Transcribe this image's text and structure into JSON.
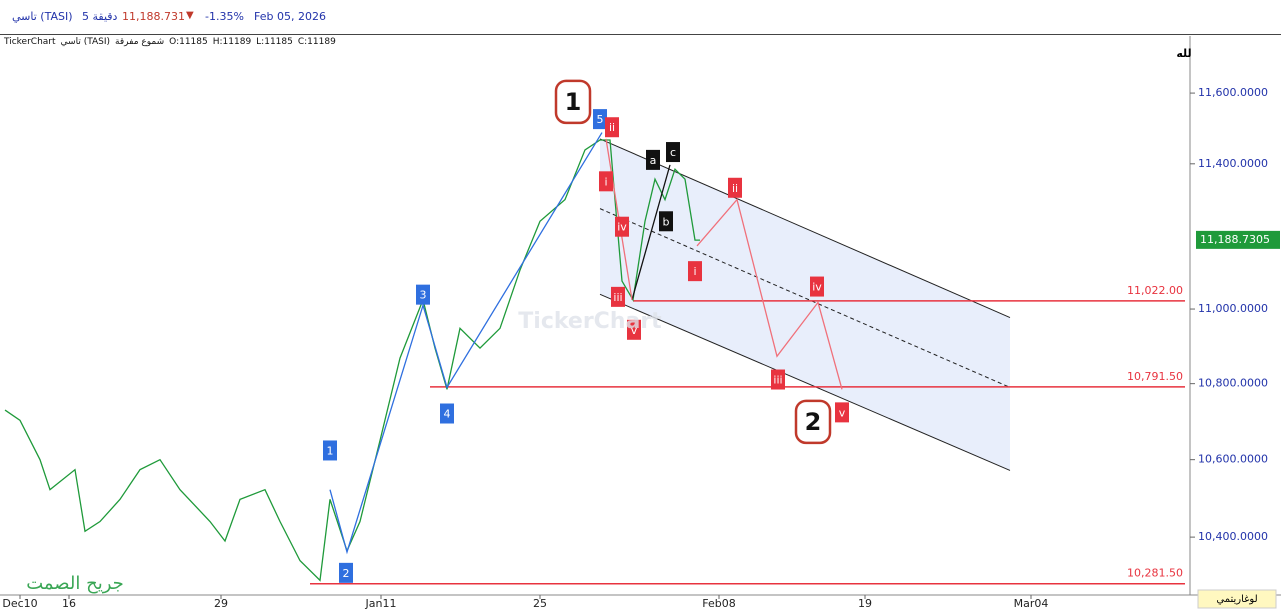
{
  "header": {
    "symbol": "تاسي (TASI)",
    "interval": "5 دقيقة",
    "price": "11,188.731",
    "change": "-1.35%",
    "date": "Feb 05, 2026"
  },
  "info": {
    "source": "TickerChart",
    "name": "تاسي (TASI)",
    "style": "شموع مفرقة",
    "open": "O:11185",
    "high": "H:11189",
    "low": "L:11185",
    "close": "C:11189"
  },
  "icon": "لله",
  "watermark": "TickerChart",
  "signature": "جريح الصمت",
  "scale_button": "لوغاريتمي",
  "chart_data": {
    "type": "line",
    "log_scale": true,
    "xlim": [
      0,
      119
    ],
    "ylim": [
      10253,
      11764
    ],
    "xticks": [
      {
        "value": 2,
        "label": "Dec10"
      },
      {
        "value": 6.9,
        "label": "16"
      },
      {
        "value": 22.1,
        "label": "29"
      },
      {
        "value": 38.1,
        "label": "Jan11"
      },
      {
        "value": 54,
        "label": "25"
      },
      {
        "value": 71.9,
        "label": "Feb08"
      },
      {
        "value": 86.5,
        "label": "19"
      },
      {
        "value": 103.1,
        "label": "Mar04"
      }
    ],
    "yticks": [
      {
        "value": 10400,
        "label": "10,400.0000"
      },
      {
        "value": 10600,
        "label": "10,600.0000"
      },
      {
        "value": 10800,
        "label": "10,800.0000"
      },
      {
        "value": 11000,
        "label": "11,000.0000"
      },
      {
        "value": 11400,
        "label": "11,400.0000"
      },
      {
        "value": 11600,
        "label": "11,600.0000"
      }
    ],
    "price": {
      "color": "#1f9a3a",
      "x": [
        0.5,
        2,
        4,
        5,
        7.5,
        8.5,
        10,
        12,
        14,
        16,
        18,
        21,
        22.5,
        24,
        26.5,
        28,
        30,
        32,
        33,
        34.7,
        36,
        38,
        40,
        42.3,
        43.5,
        44.7,
        46,
        48,
        50,
        52,
        54,
        56.5,
        58.5,
        60,
        61,
        61.5,
        62.2,
        63.3,
        64.5,
        65.5,
        66.5,
        67.5,
        68.5,
        69.5,
        70
      ],
      "values": [
        10730,
        10703,
        10600,
        10522,
        10574,
        10415,
        10440,
        10497,
        10574,
        10600,
        10522,
        10440,
        10390,
        10497,
        10522,
        10440,
        10340,
        10290,
        10497,
        10365,
        10440,
        10650,
        10868,
        11025,
        10895,
        10785,
        10948,
        10895,
        10948,
        11106,
        11240,
        11300,
        11439,
        11467,
        11467,
        11300,
        11076,
        11025,
        11240,
        11357,
        11300,
        11385,
        11357,
        11188,
        11188
      ]
    },
    "last_price": {
      "value": 11188.7305,
      "label": "11,188.7305",
      "color": "#1f9a3a"
    },
    "levels": [
      {
        "value": 11022,
        "label": "11,022.00",
        "x": [
          63.3,
          118.5
        ]
      },
      {
        "value": 10791.5,
        "label": "10,791.50",
        "x": [
          43,
          118.5
        ]
      },
      {
        "value": 10281.5,
        "label": "10,281.50",
        "x": [
          31,
          118.5
        ]
      }
    ],
    "level_color": "#e8333f",
    "channel": {
      "x": [
        60,
        101
      ],
      "upper": [
        11470,
        10977
      ],
      "middle": [
        11275,
        10790
      ],
      "lower": [
        11040,
        10572
      ],
      "fill": "#e8eefb"
    },
    "wave_paths": [
      {
        "color": "#2f6fdf",
        "x": [
          33,
          34.7,
          42.3,
          44.7,
          60.2
        ],
        "values": [
          10522,
          10362,
          11010,
          10790,
          11488
        ]
      },
      {
        "color": "#111111",
        "x": [
          63.2,
          67
        ],
        "values": [
          11025,
          11397
        ]
      },
      {
        "color": "#f0707a",
        "x": [
          60.6,
          63.2
        ],
        "values": [
          11470,
          11025
        ]
      },
      {
        "color": "#f0707a",
        "x": [
          69.7,
          73.7,
          77.7,
          81.8,
          84.2
        ],
        "values": [
          11172,
          11300,
          10873,
          11018,
          10785
        ]
      }
    ],
    "wave_labels": [
      {
        "text": "1",
        "x": 57.3,
        "y": 11575,
        "style": "circle"
      },
      {
        "text": "2",
        "x": 81.3,
        "y": 10699,
        "style": "circle"
      },
      {
        "text": "5",
        "x": 60,
        "y": 11526,
        "color": "#2f6fdf"
      },
      {
        "text": "1",
        "x": 33,
        "y": 10624,
        "color": "#2f6fdf"
      },
      {
        "text": "2",
        "x": 34.6,
        "y": 10309,
        "color": "#2f6fdf"
      },
      {
        "text": "3",
        "x": 42.3,
        "y": 11039,
        "color": "#2f6fdf"
      },
      {
        "text": "4",
        "x": 44.7,
        "y": 10721,
        "color": "#2f6fdf"
      },
      {
        "text": "ii",
        "x": 61.2,
        "y": 11503,
        "color": "#e8333f"
      },
      {
        "text": "i",
        "x": 60.6,
        "y": 11351,
        "color": "#e8333f"
      },
      {
        "text": "iv",
        "x": 62.2,
        "y": 11225,
        "color": "#e8333f"
      },
      {
        "text": "iii",
        "x": 61.8,
        "y": 11033,
        "color": "#e8333f"
      },
      {
        "text": "v",
        "x": 63.4,
        "y": 10944,
        "color": "#e8333f"
      },
      {
        "text": "a",
        "x": 65.3,
        "y": 11411,
        "color": "#111111"
      },
      {
        "text": "b",
        "x": 66.6,
        "y": 11240,
        "color": "#111111"
      },
      {
        "text": "c",
        "x": 67.3,
        "y": 11433,
        "color": "#111111"
      },
      {
        "text": "i",
        "x": 69.5,
        "y": 11103,
        "color": "#e8333f"
      },
      {
        "text": "ii",
        "x": 73.5,
        "y": 11333,
        "color": "#e8333f"
      },
      {
        "text": "iv",
        "x": 81.7,
        "y": 11061,
        "color": "#e8333f"
      },
      {
        "text": "iii",
        "x": 77.8,
        "y": 10811,
        "color": "#e8333f"
      },
      {
        "text": "v",
        "x": 84.2,
        "y": 10724,
        "color": "#e8333f"
      }
    ]
  }
}
